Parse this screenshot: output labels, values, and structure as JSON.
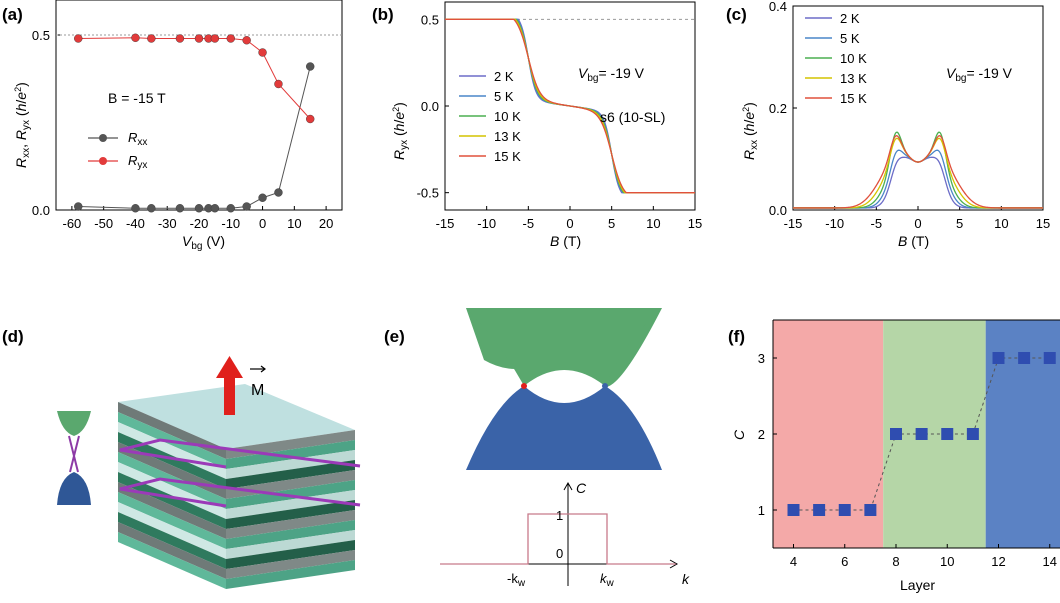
{
  "panels": {
    "a": {
      "label": "(a)"
    },
    "b": {
      "label": "(b)"
    },
    "c": {
      "label": "(c)"
    },
    "d": {
      "label": "(d)"
    },
    "e": {
      "label": "(e)"
    },
    "f": {
      "label": "(f)"
    }
  },
  "chart_data": [
    {
      "panel": "a",
      "type": "scatter",
      "xlim": [
        -65,
        25
      ],
      "ylim": [
        0,
        0.6
      ],
      "xticks": [
        "-60",
        "-50",
        "-40",
        "-30",
        "-20",
        "-10",
        "0",
        "10",
        "20"
      ],
      "yticks": [
        "0.0",
        "0.5"
      ],
      "xlabel_main": "V",
      "xlabel_sub": "bg",
      "xlabel_unit": " (V)",
      "ylabel": "R_xx, R_yx (h/e²)",
      "annotation": "B = -15 T",
      "reference_line": 0.5,
      "legend": [
        {
          "main": "R",
          "sub": "xx",
          "color": "#555555"
        },
        {
          "main": "R",
          "sub": "yx",
          "color": "#e23b3b"
        }
      ],
      "series": [
        {
          "name": "Rxx",
          "color": "#555555",
          "x": [
            -58,
            -40,
            -35,
            -26,
            -20,
            -17,
            -15,
            -10,
            -5,
            0,
            5,
            15
          ],
          "y": [
            0.01,
            0.005,
            0.005,
            0.005,
            0.005,
            0.005,
            0.005,
            0.005,
            0.01,
            0.035,
            0.05,
            0.41
          ]
        },
        {
          "name": "Ryx",
          "color": "#e23b3b",
          "x": [
            -58,
            -40,
            -35,
            -26,
            -20,
            -17,
            -15,
            -10,
            -5,
            0,
            5,
            15
          ],
          "y": [
            0.49,
            0.492,
            0.49,
            0.49,
            0.49,
            0.49,
            0.49,
            0.49,
            0.485,
            0.45,
            0.36,
            0.26
          ]
        }
      ]
    },
    {
      "panel": "b",
      "type": "line",
      "xlim": [
        -15,
        15
      ],
      "ylim": [
        -0.6,
        0.6
      ],
      "xticks": [
        "-15",
        "-10",
        "-5",
        "0",
        "5",
        "10",
        "15"
      ],
      "yticks": [
        "-0.5",
        "0.0",
        "0.5"
      ],
      "xlabel": "B (T)",
      "ylabel": "R_yx (h/e²)",
      "annotation_v": "= -19 V",
      "annotation_sample": "s6 (10-SL)",
      "legend": [
        "2 K",
        "5 K",
        "10 K",
        "13 K",
        "15 K"
      ],
      "colors": [
        "#6d6dc8",
        "#4a86c8",
        "#4caf50",
        "#d4c400",
        "#e0503c"
      ],
      "width_params": [
        0.9,
        1.0,
        1.1,
        1.2,
        1.35
      ],
      "dashed_level": 0.5
    },
    {
      "panel": "c",
      "type": "line",
      "xlim": [
        -15,
        15
      ],
      "ylim": [
        0,
        0.4
      ],
      "xticks": [
        "-15",
        "-10",
        "-5",
        "0",
        "5",
        "10",
        "15"
      ],
      "yticks": [
        "0.0",
        "0.2",
        "0.4"
      ],
      "xlabel": "B (T)",
      "ylabel": "R_xx (h/e²)",
      "annotation_v": "= -19 V",
      "legend": [
        "2 K",
        "5 K",
        "10 K",
        "13 K",
        "15 K"
      ],
      "colors": [
        "#6d6dc8",
        "#4a86c8",
        "#4caf50",
        "#d4c400",
        "#e0503c"
      ],
      "width_params": [
        3.2,
        3.6,
        4.0,
        4.5,
        5.0
      ],
      "peak_heights": [
        0.14,
        0.15,
        0.18,
        0.16,
        0.16
      ]
    },
    {
      "panel": "e",
      "type": "line",
      "xlabel": "k",
      "ylabel": "C",
      "ytick_1": "1",
      "ytick_0": "0",
      "xtick_left": "-k",
      "xtick_right": "k",
      "xtick_sub": "w",
      "step_height": 1
    },
    {
      "panel": "f",
      "type": "scatter",
      "xlim": [
        3.2,
        14.4
      ],
      "ylim": [
        0.5,
        3.5
      ],
      "xticks": [
        "4",
        "6",
        "8",
        "10",
        "12",
        "14"
      ],
      "yticks": [
        "1",
        "2",
        "3"
      ],
      "xlabel": "Layer",
      "ylabel": "C",
      "regions": [
        {
          "from": 3.2,
          "to": 7.5,
          "color": "#f4a9a8"
        },
        {
          "from": 7.5,
          "to": 11.5,
          "color": "#b5d6a7"
        },
        {
          "from": 11.5,
          "to": 14.4,
          "color": "#5b82c4"
        }
      ],
      "x": [
        4,
        5,
        6,
        7,
        8,
        9,
        10,
        11,
        12,
        13,
        14
      ],
      "y": [
        1,
        1,
        1,
        1,
        2,
        2,
        2,
        2,
        3,
        3,
        3
      ]
    }
  ],
  "diagram_d": {
    "magnetization_label": "M"
  }
}
